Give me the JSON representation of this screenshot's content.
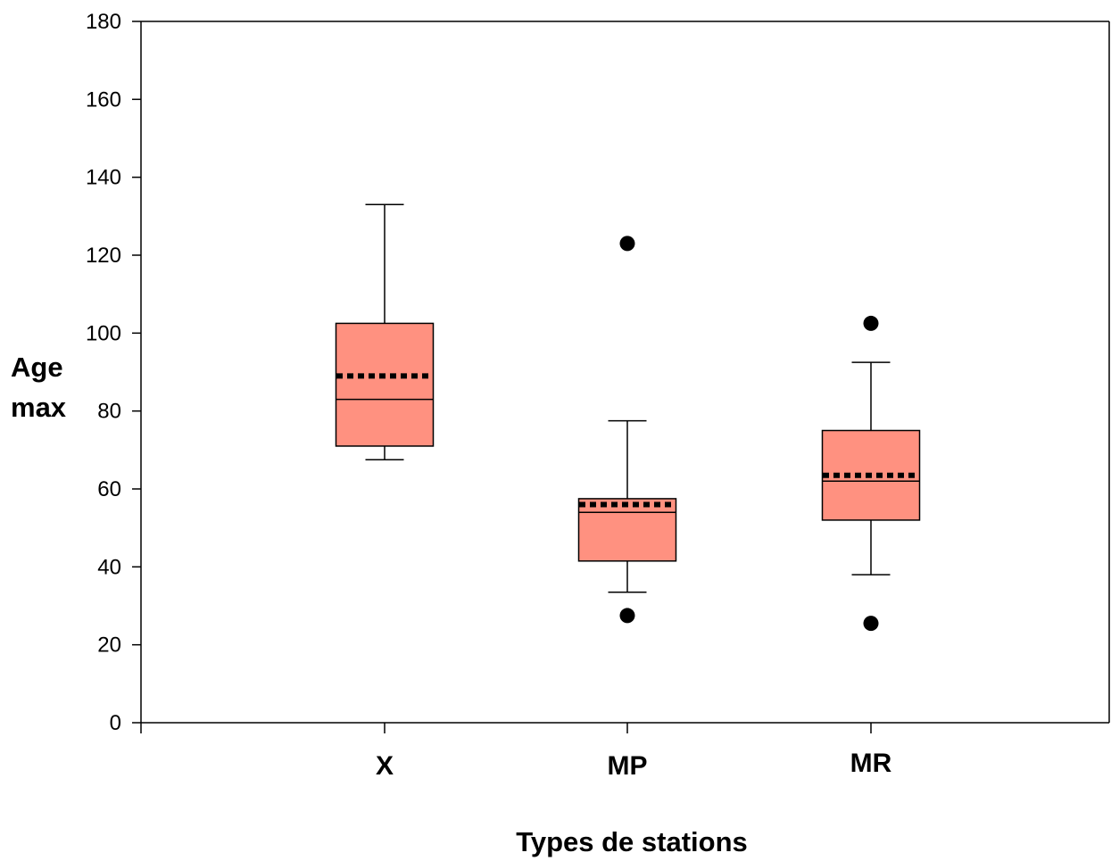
{
  "chart_data": {
    "type": "box",
    "xlabel": "Types de stations",
    "ylabel_lines": [
      "Age",
      "max"
    ],
    "ylim": [
      0,
      180
    ],
    "yticks": [
      0,
      20,
      40,
      60,
      80,
      100,
      120,
      140,
      160,
      180
    ],
    "ytick_labels": [
      "0",
      "20",
      "40",
      "60",
      "80",
      "100",
      "120",
      "140",
      "160",
      "180"
    ],
    "grid": false,
    "box_color": "#ff9180",
    "categories": [
      "X",
      "MP",
      "MR"
    ],
    "boxes": [
      {
        "category": "X",
        "whisker_low": 67.5,
        "q1": 71,
        "median": 83,
        "mean": 89,
        "q3": 102.5,
        "whisker_high": 133,
        "outliers": []
      },
      {
        "category": "MP",
        "whisker_low": 33.5,
        "q1": 41.5,
        "median": 54,
        "mean": 56,
        "q3": 57.5,
        "whisker_high": 77.5,
        "outliers": [
          27.5,
          123
        ]
      },
      {
        "category": "MR",
        "whisker_low": 38,
        "q1": 52,
        "median": 62,
        "mean": 63.5,
        "q3": 75,
        "whisker_high": 92.5,
        "outliers": [
          25.5,
          102.5
        ]
      }
    ]
  }
}
